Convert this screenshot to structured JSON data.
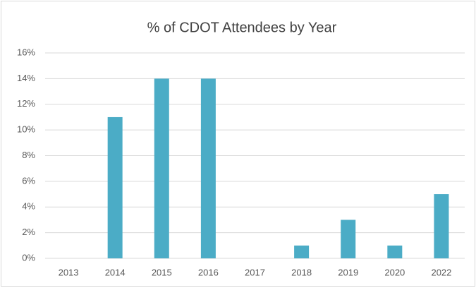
{
  "chart_data": {
    "type": "bar",
    "title": "% of CDOT Attendees by Year",
    "categories": [
      "2013",
      "2014",
      "2015",
      "2016",
      "2017",
      "2018",
      "2019",
      "2020",
      "2022"
    ],
    "values": [
      0,
      11,
      14,
      14,
      0,
      1,
      3,
      1,
      5
    ],
    "color": "#4bacc6",
    "ylim": [
      0,
      16
    ],
    "yticks": [
      {
        "value": 0,
        "label": "0%"
      },
      {
        "value": 2,
        "label": "2%"
      },
      {
        "value": 4,
        "label": "4%"
      },
      {
        "value": 6,
        "label": "6%"
      },
      {
        "value": 8,
        "label": "8%"
      },
      {
        "value": 10,
        "label": "10%"
      },
      {
        "value": 12,
        "label": "12%"
      },
      {
        "value": 14,
        "label": "14%"
      },
      {
        "value": 16,
        "label": "16%"
      }
    ],
    "grid": true
  }
}
